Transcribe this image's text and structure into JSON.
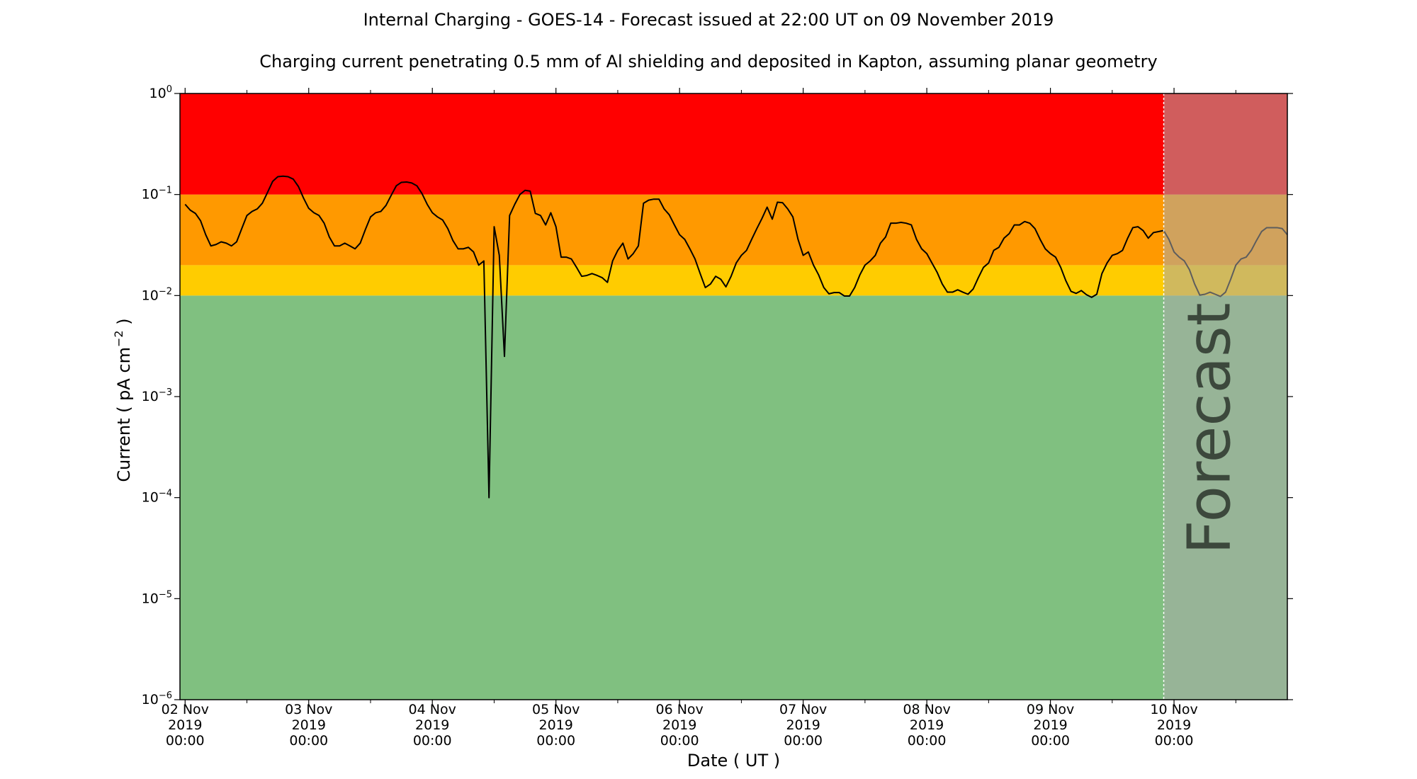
{
  "header": {
    "title": "Internal Charging - GOES-14 - Forecast issued at 22:00 UT on 09 November 2019",
    "subtitle": "Charging current penetrating 0.5 mm of Al shielding and deposited in Kapton, assuming planar geometry"
  },
  "chart_data": {
    "type": "line",
    "title": "Internal Charging - GOES-14 - Forecast issued at 22:00 UT on 09 November 2019",
    "subtitle": "Charging current penetrating 0.5 mm of Al shielding and deposited in Kapton, assuming planar geometry",
    "xlabel": "Date ( UT )",
    "ylabel_main": "Current ( pA cm",
    "ylabel_exp": "−2",
    "ylabel_end": " )",
    "yscale": "log",
    "ylim": [
      1e-06,
      1
    ],
    "yticks": [
      {
        "value": 1e-06,
        "exp": "−6"
      },
      {
        "value": 1e-05,
        "exp": "−5"
      },
      {
        "value": 0.0001,
        "exp": "−4"
      },
      {
        "value": 0.001,
        "exp": "−3"
      },
      {
        "value": 0.01,
        "exp": "−2"
      },
      {
        "value": 0.1,
        "exp": "−1"
      },
      {
        "value": 1,
        "exp": "0"
      }
    ],
    "xlim": [
      "2019-11-01 23:00",
      "2019-11-10 22:00"
    ],
    "xticks": [
      {
        "date": "2019-11-02 00:00",
        "label": [
          "02 Nov",
          "2019",
          "00:00"
        ]
      },
      {
        "date": "2019-11-03 00:00",
        "label": [
          "03 Nov",
          "2019",
          "00:00"
        ]
      },
      {
        "date": "2019-11-04 00:00",
        "label": [
          "04 Nov",
          "2019",
          "00:00"
        ]
      },
      {
        "date": "2019-11-05 00:00",
        "label": [
          "05 Nov",
          "2019",
          "00:00"
        ]
      },
      {
        "date": "2019-11-06 00:00",
        "label": [
          "06 Nov",
          "2019",
          "00:00"
        ]
      },
      {
        "date": "2019-11-07 00:00",
        "label": [
          "07 Nov",
          "2019",
          "00:00"
        ]
      },
      {
        "date": "2019-11-08 00:00",
        "label": [
          "08 Nov",
          "2019",
          "00:00"
        ]
      },
      {
        "date": "2019-11-09 00:00",
        "label": [
          "09 Nov",
          "2019",
          "00:00"
        ]
      },
      {
        "date": "2019-11-10 00:00",
        "label": [
          "10 Nov",
          "2019",
          "00:00"
        ]
      }
    ],
    "bands": [
      {
        "from": 1e-06,
        "to": 0.01,
        "color": "#80c080"
      },
      {
        "from": 0.01,
        "to": 0.02,
        "color": "#ffcc00"
      },
      {
        "from": 0.02,
        "to": 0.1,
        "color": "#ff9900"
      },
      {
        "from": 0.1,
        "to": 1,
        "color": "#ff0000"
      }
    ],
    "forecast": {
      "start": "2019-11-09 22:00",
      "label": "Forecast",
      "overlay_color": "#aaaaaa",
      "overlay_opacity": 0.55,
      "label_color": "#7a8a7a"
    },
    "line_color": "#000000",
    "series": [
      {
        "points": [
          [
            "2019-11-02 00:00",
            0.08
          ],
          [
            "2019-11-02 01:00",
            0.07
          ],
          [
            "2019-11-02 02:00",
            0.065
          ],
          [
            "2019-11-02 03:00",
            0.055
          ],
          [
            "2019-11-02 04:00",
            0.04
          ],
          [
            "2019-11-02 05:00",
            0.031
          ],
          [
            "2019-11-02 06:00",
            0.032
          ],
          [
            "2019-11-02 07:00",
            0.034
          ],
          [
            "2019-11-02 08:00",
            0.033
          ],
          [
            "2019-11-02 09:00",
            0.031
          ],
          [
            "2019-11-02 10:00",
            0.034
          ],
          [
            "2019-11-02 11:00",
            0.046
          ],
          [
            "2019-11-02 12:00",
            0.062
          ],
          [
            "2019-11-02 13:00",
            0.068
          ],
          [
            "2019-11-02 14:00",
            0.072
          ],
          [
            "2019-11-02 15:00",
            0.082
          ],
          [
            "2019-11-02 16:00",
            0.105
          ],
          [
            "2019-11-02 17:00",
            0.135
          ],
          [
            "2019-11-02 18:00",
            0.15
          ],
          [
            "2019-11-02 19:00",
            0.152
          ],
          [
            "2019-11-02 20:00",
            0.15
          ],
          [
            "2019-11-02 21:00",
            0.142
          ],
          [
            "2019-11-02 22:00",
            0.12
          ],
          [
            "2019-11-02 23:00",
            0.092
          ],
          [
            "2019-11-03 00:00",
            0.073
          ],
          [
            "2019-11-03 01:00",
            0.066
          ],
          [
            "2019-11-03 02:00",
            0.062
          ],
          [
            "2019-11-03 03:00",
            0.052
          ],
          [
            "2019-11-03 04:00",
            0.038
          ],
          [
            "2019-11-03 05:00",
            0.031
          ],
          [
            "2019-11-03 06:00",
            0.031
          ],
          [
            "2019-11-03 07:00",
            0.033
          ],
          [
            "2019-11-03 08:00",
            0.031
          ],
          [
            "2019-11-03 09:00",
            0.029
          ],
          [
            "2019-11-03 10:00",
            0.033
          ],
          [
            "2019-11-03 11:00",
            0.045
          ],
          [
            "2019-11-03 12:00",
            0.06
          ],
          [
            "2019-11-03 13:00",
            0.066
          ],
          [
            "2019-11-03 14:00",
            0.068
          ],
          [
            "2019-11-03 15:00",
            0.078
          ],
          [
            "2019-11-03 16:00",
            0.098
          ],
          [
            "2019-11-03 17:00",
            0.122
          ],
          [
            "2019-11-03 18:00",
            0.132
          ],
          [
            "2019-11-03 19:00",
            0.133
          ],
          [
            "2019-11-03 20:00",
            0.13
          ],
          [
            "2019-11-03 21:00",
            0.122
          ],
          [
            "2019-11-03 22:00",
            0.102
          ],
          [
            "2019-11-03 23:00",
            0.08
          ],
          [
            "2019-11-04 00:00",
            0.066
          ],
          [
            "2019-11-04 01:00",
            0.06
          ],
          [
            "2019-11-04 02:00",
            0.056
          ],
          [
            "2019-11-04 03:00",
            0.046
          ],
          [
            "2019-11-04 04:00",
            0.035
          ],
          [
            "2019-11-04 05:00",
            0.029
          ],
          [
            "2019-11-04 06:00",
            0.029
          ],
          [
            "2019-11-04 07:00",
            0.03
          ],
          [
            "2019-11-04 08:00",
            0.027
          ],
          [
            "2019-11-04 09:00",
            0.02
          ],
          [
            "2019-11-04 10:00",
            0.022
          ],
          [
            "2019-11-04 11:00",
            0.0001
          ],
          [
            "2019-11-04 12:00",
            0.048
          ],
          [
            "2019-11-04 13:00",
            0.025
          ],
          [
            "2019-11-04 14:00",
            0.0025
          ],
          [
            "2019-11-04 15:00",
            0.062
          ],
          [
            "2019-11-04 16:00",
            0.08
          ],
          [
            "2019-11-04 17:00",
            0.1
          ],
          [
            "2019-11-04 18:00",
            0.11
          ],
          [
            "2019-11-04 19:00",
            0.108
          ],
          [
            "2019-11-04 20:00",
            0.065
          ],
          [
            "2019-11-04 21:00",
            0.062
          ],
          [
            "2019-11-04 22:00",
            0.05
          ],
          [
            "2019-11-04 23:00",
            0.066
          ],
          [
            "2019-11-05 00:00",
            0.048
          ],
          [
            "2019-11-05 01:00",
            0.024
          ],
          [
            "2019-11-05 02:00",
            0.024
          ],
          [
            "2019-11-05 03:00",
            0.023
          ],
          [
            "2019-11-05 04:00",
            0.019
          ],
          [
            "2019-11-05 05:00",
            0.0155
          ],
          [
            "2019-11-05 06:00",
            0.0158
          ],
          [
            "2019-11-05 07:00",
            0.0165
          ],
          [
            "2019-11-05 08:00",
            0.0158
          ],
          [
            "2019-11-05 09:00",
            0.015
          ],
          [
            "2019-11-05 10:00",
            0.0135
          ],
          [
            "2019-11-05 11:00",
            0.022
          ],
          [
            "2019-11-05 12:00",
            0.028
          ],
          [
            "2019-11-05 13:00",
            0.033
          ],
          [
            "2019-11-05 14:00",
            0.023
          ],
          [
            "2019-11-05 15:00",
            0.026
          ],
          [
            "2019-11-05 16:00",
            0.031
          ],
          [
            "2019-11-05 17:00",
            0.082
          ],
          [
            "2019-11-05 18:00",
            0.088
          ],
          [
            "2019-11-05 19:00",
            0.09
          ],
          [
            "2019-11-05 20:00",
            0.09
          ],
          [
            "2019-11-05 21:00",
            0.072
          ],
          [
            "2019-11-05 22:00",
            0.063
          ],
          [
            "2019-11-05 23:00",
            0.05
          ],
          [
            "2019-11-06 00:00",
            0.04
          ],
          [
            "2019-11-06 01:00",
            0.036
          ],
          [
            "2019-11-06 02:00",
            0.029
          ],
          [
            "2019-11-06 03:00",
            0.023
          ],
          [
            "2019-11-06 04:00",
            0.0165
          ],
          [
            "2019-11-06 05:00",
            0.012
          ],
          [
            "2019-11-06 06:00",
            0.013
          ],
          [
            "2019-11-06 07:00",
            0.0155
          ],
          [
            "2019-11-06 08:00",
            0.0145
          ],
          [
            "2019-11-06 09:00",
            0.0122
          ],
          [
            "2019-11-06 10:00",
            0.0155
          ],
          [
            "2019-11-06 11:00",
            0.021
          ],
          [
            "2019-11-06 12:00",
            0.025
          ],
          [
            "2019-11-06 13:00",
            0.028
          ],
          [
            "2019-11-06 14:00",
            0.036
          ],
          [
            "2019-11-06 15:00",
            0.046
          ],
          [
            "2019-11-06 16:00",
            0.058
          ],
          [
            "2019-11-06 17:00",
            0.075
          ],
          [
            "2019-11-06 18:00",
            0.057
          ],
          [
            "2019-11-06 19:00",
            0.084
          ],
          [
            "2019-11-06 20:00",
            0.083
          ],
          [
            "2019-11-06 21:00",
            0.072
          ],
          [
            "2019-11-06 22:00",
            0.06
          ],
          [
            "2019-11-06 23:00",
            0.036
          ],
          [
            "2019-11-07 00:00",
            0.025
          ],
          [
            "2019-11-07 01:00",
            0.027
          ],
          [
            "2019-11-07 02:00",
            0.02
          ],
          [
            "2019-11-07 03:00",
            0.016
          ],
          [
            "2019-11-07 04:00",
            0.012
          ],
          [
            "2019-11-07 05:00",
            0.0104
          ],
          [
            "2019-11-07 06:00",
            0.0107
          ],
          [
            "2019-11-07 07:00",
            0.0107
          ],
          [
            "2019-11-07 08:00",
            0.0099
          ],
          [
            "2019-11-07 09:00",
            0.0099
          ],
          [
            "2019-11-07 10:00",
            0.012
          ],
          [
            "2019-11-07 11:00",
            0.016
          ],
          [
            "2019-11-07 12:00",
            0.02
          ],
          [
            "2019-11-07 13:00",
            0.022
          ],
          [
            "2019-11-07 14:00",
            0.025
          ],
          [
            "2019-11-07 15:00",
            0.033
          ],
          [
            "2019-11-07 16:00",
            0.038
          ],
          [
            "2019-11-07 17:00",
            0.052
          ],
          [
            "2019-11-07 18:00",
            0.052
          ],
          [
            "2019-11-07 19:00",
            0.053
          ],
          [
            "2019-11-07 20:00",
            0.052
          ],
          [
            "2019-11-07 21:00",
            0.05
          ],
          [
            "2019-11-07 22:00",
            0.036
          ],
          [
            "2019-11-07 23:00",
            0.029
          ],
          [
            "2019-11-08 00:00",
            0.026
          ],
          [
            "2019-11-08 01:00",
            0.021
          ],
          [
            "2019-11-08 02:00",
            0.017
          ],
          [
            "2019-11-08 03:00",
            0.013
          ],
          [
            "2019-11-08 04:00",
            0.0108
          ],
          [
            "2019-11-08 05:00",
            0.0108
          ],
          [
            "2019-11-08 06:00",
            0.0114
          ],
          [
            "2019-11-08 07:00",
            0.0108
          ],
          [
            "2019-11-08 08:00",
            0.0103
          ],
          [
            "2019-11-08 09:00",
            0.0116
          ],
          [
            "2019-11-08 10:00",
            0.015
          ],
          [
            "2019-11-08 11:00",
            0.019
          ],
          [
            "2019-11-08 12:00",
            0.021
          ],
          [
            "2019-11-08 13:00",
            0.028
          ],
          [
            "2019-11-08 14:00",
            0.03
          ],
          [
            "2019-11-08 15:00",
            0.037
          ],
          [
            "2019-11-08 16:00",
            0.041
          ],
          [
            "2019-11-08 17:00",
            0.05
          ],
          [
            "2019-11-08 18:00",
            0.05
          ],
          [
            "2019-11-08 19:00",
            0.054
          ],
          [
            "2019-11-08 20:00",
            0.052
          ],
          [
            "2019-11-08 21:00",
            0.046
          ],
          [
            "2019-11-08 22:00",
            0.036
          ],
          [
            "2019-11-08 23:00",
            0.029
          ],
          [
            "2019-11-09 00:00",
            0.026
          ],
          [
            "2019-11-09 01:00",
            0.024
          ],
          [
            "2019-11-09 02:00",
            0.019
          ],
          [
            "2019-11-09 03:00",
            0.014
          ],
          [
            "2019-11-09 04:00",
            0.011
          ],
          [
            "2019-11-09 05:00",
            0.0105
          ],
          [
            "2019-11-09 06:00",
            0.0112
          ],
          [
            "2019-11-09 07:00",
            0.0102
          ],
          [
            "2019-11-09 08:00",
            0.0096
          ],
          [
            "2019-11-09 09:00",
            0.0103
          ],
          [
            "2019-11-09 10:00",
            0.0165
          ],
          [
            "2019-11-09 11:00",
            0.021
          ],
          [
            "2019-11-09 12:00",
            0.025
          ],
          [
            "2019-11-09 13:00",
            0.026
          ],
          [
            "2019-11-09 14:00",
            0.028
          ],
          [
            "2019-11-09 15:00",
            0.037
          ],
          [
            "2019-11-09 16:00",
            0.047
          ],
          [
            "2019-11-09 17:00",
            0.048
          ],
          [
            "2019-11-09 18:00",
            0.044
          ],
          [
            "2019-11-09 19:00",
            0.037
          ],
          [
            "2019-11-09 20:00",
            0.042
          ],
          [
            "2019-11-09 21:00",
            0.043
          ],
          [
            "2019-11-09 22:00",
            0.044
          ],
          [
            "2019-11-09 23:00",
            0.036
          ],
          [
            "2019-11-10 00:00",
            0.027
          ],
          [
            "2019-11-10 01:00",
            0.024
          ],
          [
            "2019-11-10 02:00",
            0.022
          ],
          [
            "2019-11-10 03:00",
            0.018
          ],
          [
            "2019-11-10 04:00",
            0.013
          ],
          [
            "2019-11-10 05:00",
            0.0101
          ],
          [
            "2019-11-10 06:00",
            0.0103
          ],
          [
            "2019-11-10 07:00",
            0.0108
          ],
          [
            "2019-11-10 08:00",
            0.0103
          ],
          [
            "2019-11-10 09:00",
            0.0098
          ],
          [
            "2019-11-10 10:00",
            0.0108
          ],
          [
            "2019-11-10 11:00",
            0.0145
          ],
          [
            "2019-11-10 12:00",
            0.02
          ],
          [
            "2019-11-10 13:00",
            0.023
          ],
          [
            "2019-11-10 14:00",
            0.024
          ],
          [
            "2019-11-10 15:00",
            0.028
          ],
          [
            "2019-11-10 16:00",
            0.035
          ],
          [
            "2019-11-10 17:00",
            0.043
          ],
          [
            "2019-11-10 18:00",
            0.047
          ],
          [
            "2019-11-10 19:00",
            0.047
          ],
          [
            "2019-11-10 20:00",
            0.047
          ],
          [
            "2019-11-10 21:00",
            0.046
          ],
          [
            "2019-11-10 22:00",
            0.04
          ]
        ]
      }
    ]
  }
}
